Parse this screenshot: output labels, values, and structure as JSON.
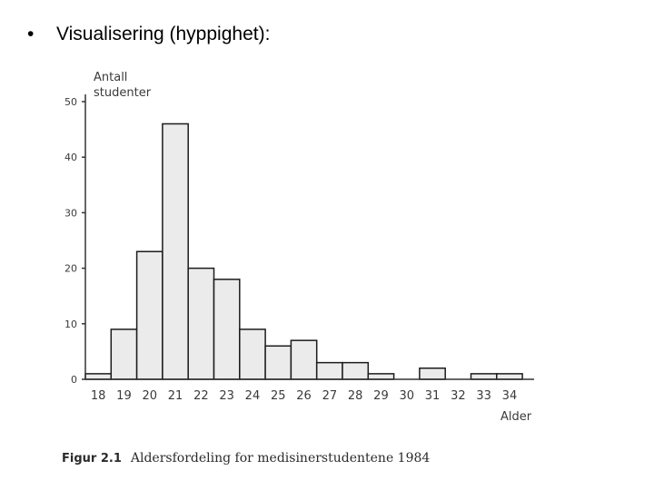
{
  "slide": {
    "bullet_symbol": "•",
    "bullet_text": "Visualisering (hyppighet):"
  },
  "chart_data": {
    "type": "bar",
    "title": "",
    "ylabel_lines": [
      "Antall",
      "studenter"
    ],
    "xlabel": "Alder",
    "categories": [
      "18",
      "19",
      "20",
      "21",
      "22",
      "23",
      "24",
      "25",
      "26",
      "27",
      "28",
      "29",
      "30",
      "31",
      "32",
      "33",
      "34"
    ],
    "values": [
      1,
      9,
      23,
      46,
      20,
      18,
      9,
      6,
      7,
      3,
      3,
      1,
      0,
      2,
      0,
      1,
      1
    ],
    "ylim": [
      0,
      50
    ],
    "yticks": [
      0,
      10,
      20,
      30,
      40,
      50
    ],
    "grid": false,
    "colors": {
      "bar_fill": "#ebebeb",
      "bar_stroke": "#1c1c1c",
      "axis": "#333333",
      "text": "#3a3a3a"
    }
  },
  "caption": {
    "label": "Figur 2.1",
    "text": "Aldersfordeling for medisinerstudentene 1984"
  }
}
